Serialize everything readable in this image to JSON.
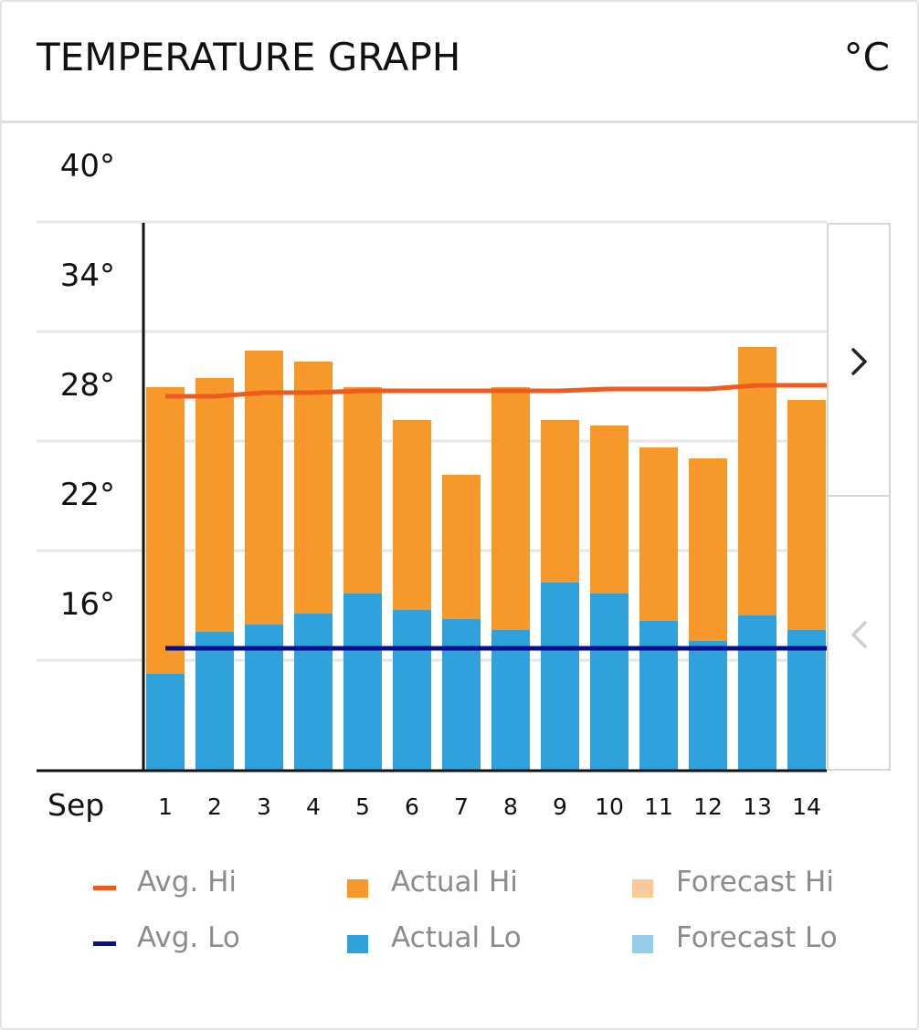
{
  "header": {
    "title": "TEMPERATURE GRAPH",
    "unit": "°C"
  },
  "nav": {
    "next_icon": "chevron-right-icon",
    "prev_icon": "chevron-left-icon"
  },
  "colors": {
    "actual_hi": "#f6982a",
    "actual_lo": "#2fa1db",
    "avg_hi": "#ef5a1e",
    "avg_lo": "#070f8f",
    "forecast_hi": "#fcc99b",
    "forecast_lo": "#96cdea"
  },
  "chart_data": {
    "type": "bar",
    "month_label": "Sep",
    "categories": [
      "1",
      "2",
      "3",
      "4",
      "5",
      "6",
      "7",
      "8",
      "9",
      "10",
      "11",
      "12",
      "13",
      "14"
    ],
    "series": [
      {
        "name": "Actual Hi",
        "values": [
          31,
          31.5,
          33,
          32.4,
          31,
          29.2,
          26.2,
          31,
          29.2,
          28.9,
          27.7,
          27.1,
          33.2,
          30.3
        ]
      },
      {
        "name": "Actual Lo",
        "values": [
          15.3,
          17.6,
          18.0,
          18.6,
          19.7,
          18.8,
          18.3,
          17.7,
          20.3,
          19.7,
          18.2,
          17.1,
          18.5,
          17.7
        ]
      },
      {
        "name": "Avg. Hi",
        "values": [
          30.5,
          30.5,
          30.7,
          30.7,
          30.8,
          30.8,
          30.8,
          30.8,
          30.8,
          30.9,
          30.9,
          30.9,
          31.1,
          31.1
        ]
      },
      {
        "name": "Avg. Lo",
        "values": [
          16.7,
          16.7,
          16.7,
          16.7,
          16.7,
          16.7,
          16.7,
          16.7,
          16.7,
          16.7,
          16.7,
          16.7,
          16.7,
          16.7
        ]
      }
    ],
    "y_ticks": [
      "40°",
      "34°",
      "28°",
      "22°",
      "16°"
    ],
    "y_tick_values": [
      40,
      34,
      28,
      22,
      16
    ],
    "ylim": [
      10,
      40
    ],
    "grid": true,
    "legend_position": "bottom"
  },
  "legend": [
    {
      "label": "Avg. Hi",
      "kind": "line",
      "color": "#ef5a1e"
    },
    {
      "label": "Avg. Lo",
      "kind": "line",
      "color": "#070f8f"
    },
    {
      "label": "Actual Hi",
      "kind": "square",
      "color": "#f6982a"
    },
    {
      "label": "Actual Lo",
      "kind": "square",
      "color": "#2fa1db"
    },
    {
      "label": "Forecast Hi",
      "kind": "square",
      "color": "#fcc99b"
    },
    {
      "label": "Forecast Lo",
      "kind": "square",
      "color": "#96cdea"
    }
  ]
}
